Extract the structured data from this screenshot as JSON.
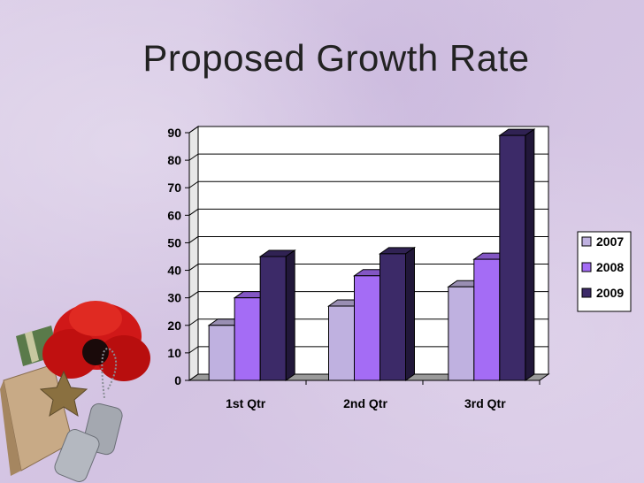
{
  "slide": {
    "title": "Proposed Growth Rate"
  },
  "chart_data": {
    "type": "bar",
    "style": "3d-clustered-column",
    "categories": [
      "1st Qtr",
      "2nd Qtr",
      "3rd Qtr"
    ],
    "series": [
      {
        "name": "2007",
        "values": [
          20,
          27,
          34
        ],
        "color": "#bfb1e0"
      },
      {
        "name": "2008",
        "values": [
          30,
          38,
          44
        ],
        "color": "#a46cf5"
      },
      {
        "name": "2009",
        "values": [
          45,
          46,
          89
        ],
        "color": "#3c2a68"
      }
    ],
    "ylim": [
      0,
      90
    ],
    "yticks": [
      "0",
      "10",
      "20",
      "30",
      "40",
      "50",
      "60",
      "70",
      "80",
      "90"
    ],
    "grid": true,
    "legend_position": "right",
    "title": "",
    "xlabel": "",
    "ylabel": ""
  },
  "decor": {
    "image": "poppy-and-dog-tags-illustration"
  }
}
